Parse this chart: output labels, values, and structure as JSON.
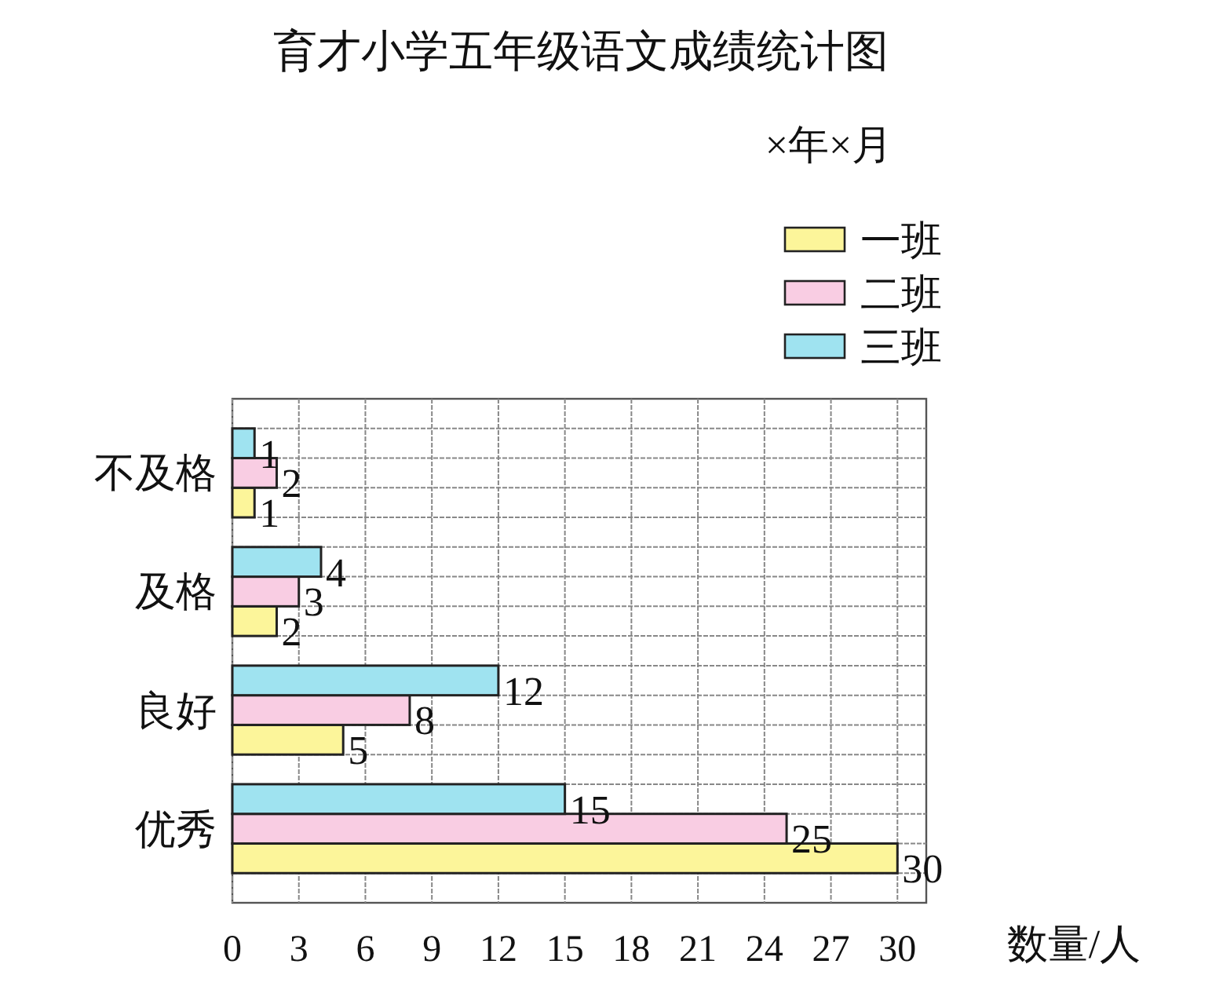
{
  "chart_data": {
    "type": "bar",
    "orientation": "horizontal",
    "title": "育才小学五年级语文成绩统计图",
    "subtitle": "×年×月",
    "xlabel": "数量/人",
    "categories": [
      "不及格",
      "及格",
      "良好",
      "优秀"
    ],
    "series": [
      {
        "name": "一班",
        "color": "#fcf59a",
        "values": [
          1,
          2,
          5,
          30
        ]
      },
      {
        "name": "二班",
        "color": "#f9cde3",
        "values": [
          2,
          3,
          8,
          25
        ]
      },
      {
        "name": "三班",
        "color": "#9fe3f0",
        "values": [
          1,
          4,
          12,
          15
        ]
      }
    ],
    "xlim": [
      0,
      31.3
    ],
    "xticks": [
      0,
      3,
      6,
      9,
      12,
      15,
      18,
      21,
      24,
      27,
      30
    ],
    "grid": true,
    "legend": "top right",
    "data_labels": true
  }
}
